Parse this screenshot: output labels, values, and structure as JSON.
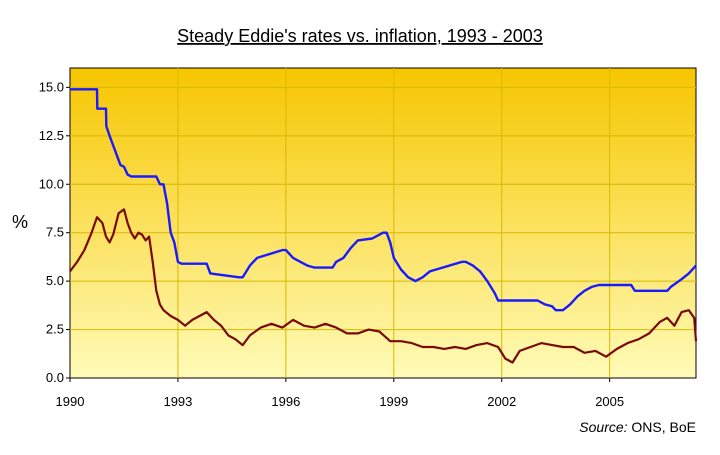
{
  "chart_data": {
    "type": "line",
    "title": "Steady Eddie's rates vs. inflation, 1993 - 2003",
    "ylabel": "%",
    "xlabel": "",
    "source_prefix": "Source:",
    "source_suffix": " ONS, BoE",
    "xlim": [
      1990,
      2007.4
    ],
    "ylim": [
      0,
      16
    ],
    "yticks": [
      "0.0",
      "2.5",
      "5.0",
      "7.5",
      "10.0",
      "12.5",
      "15.0"
    ],
    "ytick_values": [
      0,
      2.5,
      5,
      7.5,
      10,
      12.5,
      15
    ],
    "xticks": [
      "1990",
      "1993",
      "1996",
      "1999",
      "2002",
      "2005"
    ],
    "xtick_values": [
      1990,
      1993,
      1996,
      1999,
      2002,
      2005
    ],
    "grid": true,
    "colors": {
      "rates": "#1a1aff",
      "inflation": "#7a0a0a",
      "bg_top": "#f7c600",
      "bg_bottom": "#fffbb8"
    },
    "series": [
      {
        "key": "rates",
        "x": [
          1990.0,
          1990.75,
          1990.76,
          1991.0,
          1991.01,
          1991.1,
          1991.2,
          1991.3,
          1991.4,
          1991.5,
          1991.6,
          1991.7,
          1991.8,
          1992.4,
          1992.5,
          1992.6,
          1992.7,
          1992.8,
          1992.9,
          1993.0,
          1993.1,
          1993.8,
          1993.9,
          1994.7,
          1994.8,
          1995.0,
          1995.2,
          1995.9,
          1996.0,
          1996.2,
          1996.4,
          1996.6,
          1996.8,
          1997.3,
          1997.4,
          1997.6,
          1997.8,
          1998.0,
          1998.4,
          1998.7,
          1998.8,
          1998.9,
          1999.0,
          1999.2,
          1999.4,
          1999.6,
          1999.8,
          2000.0,
          2000.9,
          2001.0,
          2001.2,
          2001.4,
          2001.6,
          2001.8,
          2001.9,
          2003.0,
          2003.2,
          2003.4,
          2003.5,
          2003.7,
          2003.9,
          2004.1,
          2004.3,
          2004.5,
          2004.7,
          2005.6,
          2005.7,
          2006.6,
          2006.7,
          2007.0,
          2007.2,
          2007.4
        ],
        "y": [
          14.9,
          14.9,
          13.9,
          13.9,
          13.0,
          12.5,
          12.0,
          11.5,
          11.0,
          10.9,
          10.5,
          10.4,
          10.4,
          10.4,
          10.0,
          10.0,
          9.0,
          7.5,
          7.0,
          6.0,
          5.9,
          5.9,
          5.4,
          5.2,
          5.2,
          5.8,
          6.2,
          6.6,
          6.6,
          6.2,
          6.0,
          5.8,
          5.7,
          5.7,
          6.0,
          6.2,
          6.7,
          7.1,
          7.2,
          7.5,
          7.5,
          7.0,
          6.2,
          5.6,
          5.2,
          5.0,
          5.2,
          5.5,
          6.0,
          6.0,
          5.8,
          5.5,
          5.0,
          4.4,
          4.0,
          4.0,
          3.8,
          3.7,
          3.5,
          3.5,
          3.8,
          4.2,
          4.5,
          4.7,
          4.8,
          4.8,
          4.5,
          4.5,
          4.7,
          5.1,
          5.4,
          5.8
        ]
      },
      {
        "key": "inflation",
        "x": [
          1990.0,
          1990.2,
          1990.4,
          1990.6,
          1990.75,
          1990.9,
          1991.0,
          1991.1,
          1991.2,
          1991.35,
          1991.5,
          1991.6,
          1991.7,
          1991.8,
          1991.9,
          1992.0,
          1992.1,
          1992.2,
          1992.3,
          1992.4,
          1992.5,
          1992.6,
          1992.8,
          1993.0,
          1993.2,
          1993.4,
          1993.6,
          1993.8,
          1994.0,
          1994.2,
          1994.4,
          1994.6,
          1994.8,
          1995.0,
          1995.3,
          1995.6,
          1995.9,
          1996.2,
          1996.5,
          1996.8,
          1997.1,
          1997.4,
          1997.7,
          1998.0,
          1998.3,
          1998.6,
          1998.9,
          1999.2,
          1999.5,
          1999.8,
          2000.1,
          2000.4,
          2000.7,
          2001.0,
          2001.3,
          2001.6,
          2001.9,
          2002.1,
          2002.3,
          2002.5,
          2002.8,
          2003.1,
          2003.4,
          2003.7,
          2004.0,
          2004.3,
          2004.6,
          2004.9,
          2005.2,
          2005.5,
          2005.8,
          2006.1,
          2006.4,
          2006.6,
          2006.8,
          2007.0,
          2007.2,
          2007.35,
          2007.4
        ],
        "y": [
          5.5,
          6.0,
          6.6,
          7.5,
          8.3,
          8.0,
          7.3,
          7.0,
          7.4,
          8.5,
          8.7,
          8.0,
          7.5,
          7.2,
          7.5,
          7.4,
          7.1,
          7.3,
          6.0,
          4.5,
          3.8,
          3.5,
          3.2,
          3.0,
          2.7,
          3.0,
          3.2,
          3.4,
          3.0,
          2.7,
          2.2,
          2.0,
          1.7,
          2.2,
          2.6,
          2.8,
          2.6,
          3.0,
          2.7,
          2.6,
          2.8,
          2.6,
          2.3,
          2.3,
          2.5,
          2.4,
          1.9,
          1.9,
          1.8,
          1.6,
          1.6,
          1.5,
          1.6,
          1.5,
          1.7,
          1.8,
          1.6,
          1.0,
          0.8,
          1.4,
          1.6,
          1.8,
          1.7,
          1.6,
          1.6,
          1.3,
          1.4,
          1.1,
          1.5,
          1.8,
          2.0,
          2.3,
          2.9,
          3.1,
          2.7,
          3.4,
          3.5,
          3.1,
          1.9
        ]
      }
    ]
  }
}
